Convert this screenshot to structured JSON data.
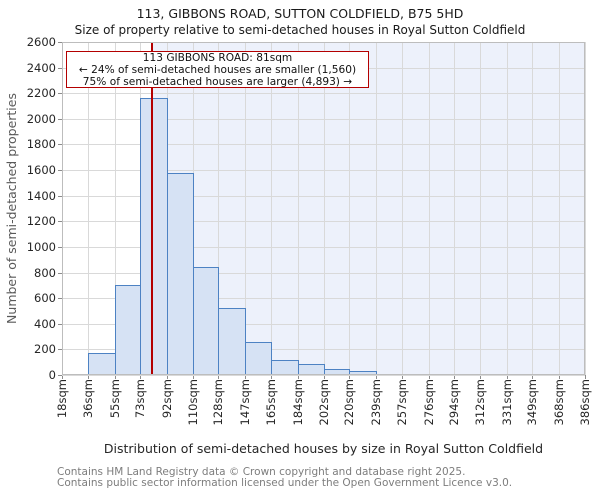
{
  "header": {
    "title": "113, GIBBONS ROAD, SUTTON COLDFIELD, B75 5HD",
    "subtitle": "Size of property relative to semi-detached houses in Royal Sutton Coldfield"
  },
  "chart_data": {
    "type": "bar",
    "title": "113, GIBBONS ROAD, SUTTON COLDFIELD, B75 5HD",
    "subtitle": "Size of property relative to semi-detached houses in Royal Sutton Coldfield",
    "xlabel": "Distribution of semi-detached houses by size in Royal Sutton Coldfield",
    "ylabel": "Number of semi-detached properties",
    "ylim": [
      0,
      2600
    ],
    "yticks": [
      0,
      200,
      400,
      600,
      800,
      1000,
      1200,
      1400,
      1600,
      1800,
      2000,
      2200,
      2400,
      2600
    ],
    "xlim_sqm": [
      18,
      386
    ],
    "bin_edges_sqm": [
      18,
      36,
      55,
      73,
      92,
      110,
      128,
      147,
      165,
      184,
      202,
      220,
      239,
      257,
      276,
      294,
      312,
      331,
      349,
      368,
      386
    ],
    "x_tick_labels": [
      "18sqm",
      "36sqm",
      "55sqm",
      "73sqm",
      "92sqm",
      "110sqm",
      "128sqm",
      "147sqm",
      "165sqm",
      "184sqm",
      "202sqm",
      "220sqm",
      "239sqm",
      "257sqm",
      "276sqm",
      "294sqm",
      "312sqm",
      "331sqm",
      "349sqm",
      "368sqm",
      "386sqm"
    ],
    "values": [
      10,
      170,
      700,
      2160,
      1580,
      840,
      520,
      260,
      120,
      85,
      50,
      28,
      8,
      8,
      8,
      0,
      8,
      0,
      0,
      0
    ],
    "grid": true,
    "legend": "none",
    "marker": {
      "sqm": 81
    },
    "annotation": {
      "line1": "113 GIBBONS ROAD: 81sqm",
      "line2": "← 24% of semi-detached houses are smaller (1,560)",
      "line3": "75% of semi-detached houses are larger (4,893) →"
    },
    "colors": {
      "bar_fill": "#d6e2f4",
      "bar_edge": "#4d82c3",
      "marker_line": "#b40000",
      "annotation_border": "#b40000",
      "shade_right_of_marker": "#edf1fb",
      "grid_line": "#d9d9d9",
      "frame": "#bdbdbd"
    }
  },
  "footer": {
    "line1": "Contains HM Land Registry data © Crown copyright and database right 2025.",
    "line2": "Contains public sector information licensed under the Open Government Licence v3.0."
  }
}
